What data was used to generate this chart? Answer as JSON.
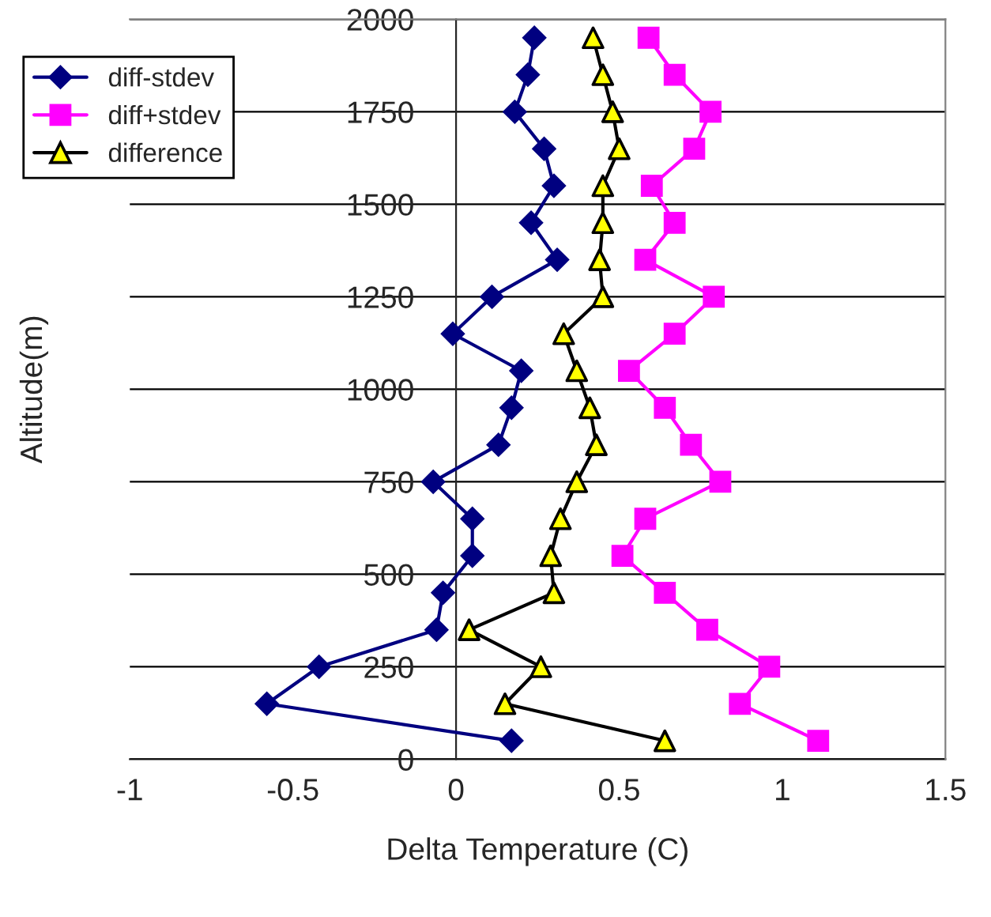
{
  "chart_data": {
    "type": "line",
    "xlabel": "Delta Temperature (C)",
    "ylabel": "Altitude(m)",
    "series": [
      {
        "name": "diff-stdev",
        "color": "#000080",
        "marker": "diamond",
        "x": [
          0.17,
          -0.58,
          -0.42,
          -0.06,
          -0.04,
          0.05,
          0.05,
          -0.07,
          0.13,
          0.17,
          0.2,
          -0.01,
          0.11,
          0.31,
          0.23,
          0.3,
          0.27,
          0.18,
          0.22,
          0.24
        ],
        "values": [
          50,
          150,
          250,
          350,
          450,
          550,
          650,
          750,
          850,
          950,
          1050,
          1150,
          1250,
          1350,
          1450,
          1550,
          1650,
          1750,
          1850,
          1950
        ]
      },
      {
        "name": "diff+stdev",
        "color": "#ff00ff",
        "marker": "square",
        "x": [
          1.11,
          0.87,
          0.96,
          0.77,
          0.64,
          0.51,
          0.58,
          0.81,
          0.72,
          0.64,
          0.53,
          0.67,
          0.79,
          0.58,
          0.67,
          0.6,
          0.73,
          0.78,
          0.67,
          0.59
        ],
        "values": [
          50,
          150,
          250,
          350,
          450,
          550,
          650,
          750,
          850,
          950,
          1050,
          1150,
          1250,
          1350,
          1450,
          1550,
          1650,
          1750,
          1850,
          1950
        ]
      },
      {
        "name": "difference",
        "color": "#000000",
        "colors": [
          "#ffff00",
          "#ffff00",
          "#ffff00",
          "#ffff00",
          "#ffff00",
          "#ffff00",
          "#ffff00",
          "#ffff00",
          "#ffff00",
          "#ffff00",
          "#ffff00",
          "#ffff00",
          "#ffff00",
          "#ffff00",
          "#ffff00",
          "#ffff00",
          "#ffff00",
          "#ffff00",
          "#ffff00",
          "#ffff00"
        ],
        "marker": "triangle",
        "x": [
          0.64,
          0.15,
          0.26,
          0.04,
          0.3,
          0.29,
          0.32,
          0.37,
          0.43,
          0.41,
          0.37,
          0.33,
          0.45,
          0.44,
          0.45,
          0.45,
          0.5,
          0.48,
          0.45,
          0.42
        ],
        "values": [
          50,
          150,
          250,
          350,
          450,
          550,
          650,
          750,
          850,
          950,
          1050,
          1150,
          1250,
          1350,
          1450,
          1550,
          1650,
          1750,
          1850,
          1950
        ]
      }
    ],
    "xlim": [
      -1,
      1.5
    ],
    "xticks": [
      -1,
      -0.5,
      0,
      0.5,
      1,
      1.5
    ],
    "ylim": [
      0,
      2000
    ],
    "yticks": [
      0,
      250,
      500,
      750,
      1000,
      1250,
      1500,
      1750,
      2000
    ],
    "grid": "y",
    "legend": "top left",
    "line_style": "solid"
  }
}
